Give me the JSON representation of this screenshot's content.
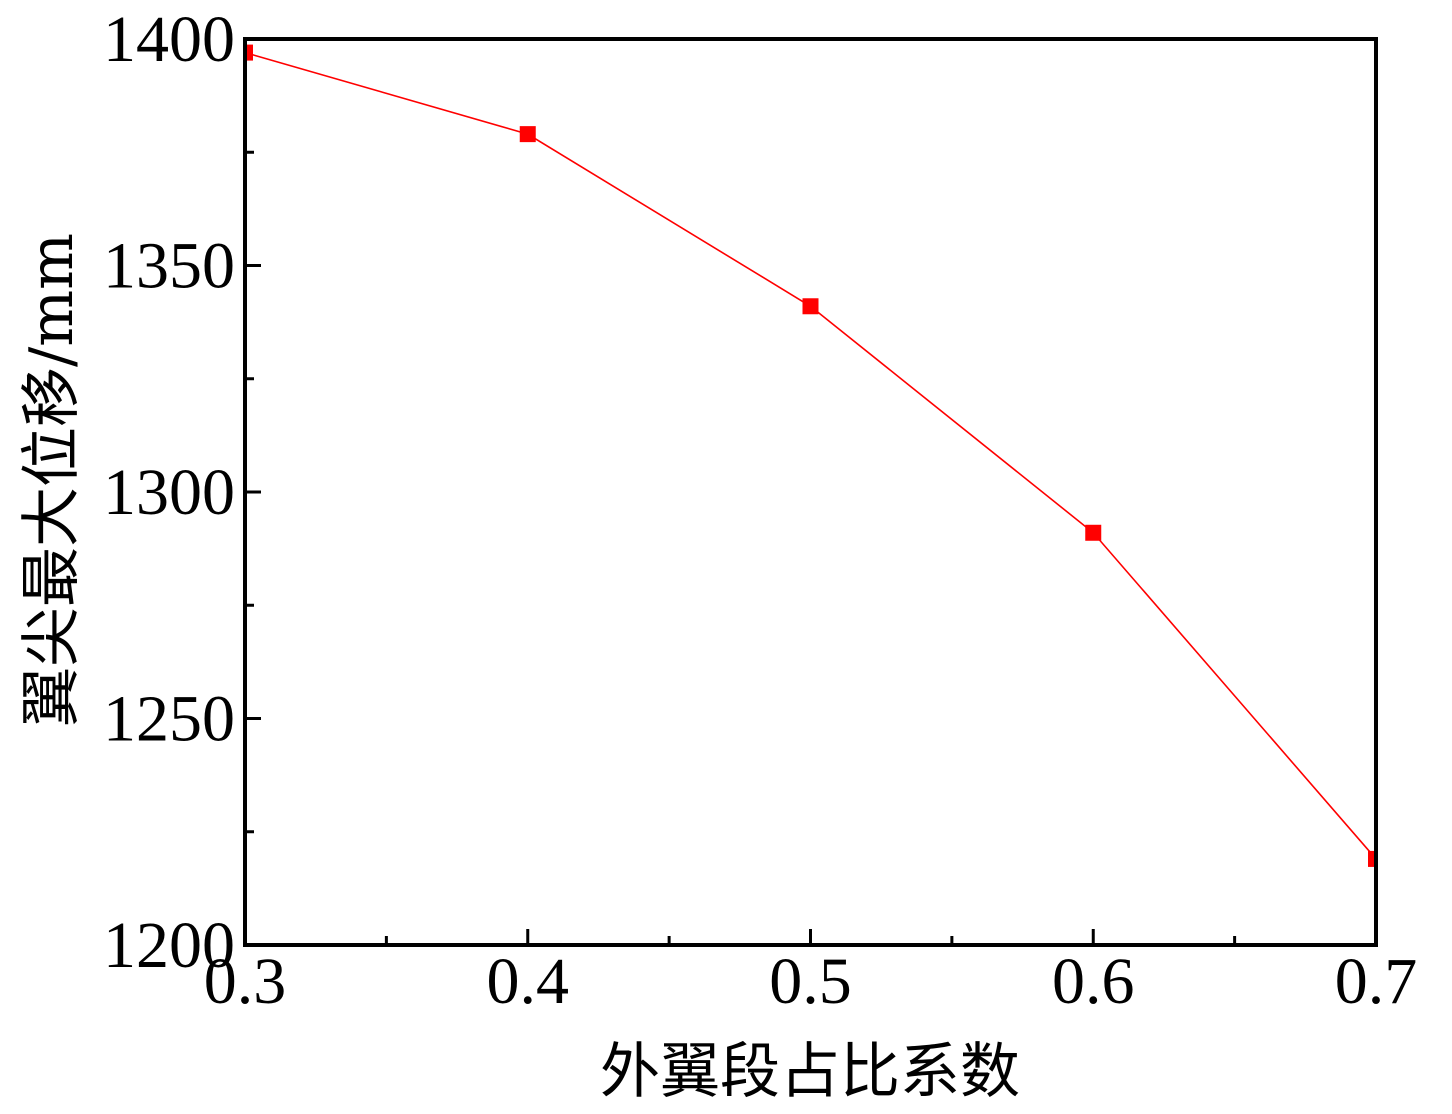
{
  "chart_data": {
    "type": "line",
    "title": "",
    "xlabel": "外翼段占比系数",
    "ylabel": "翼尖最大位移/mm",
    "x": [
      0.3,
      0.4,
      0.5,
      0.6,
      0.7
    ],
    "series": [
      {
        "values": [
          1397,
          1379,
          1341,
          1291,
          1219
        ],
        "color": "#ff0000",
        "marker": "square"
      }
    ],
    "xlim": [
      0.3,
      0.7
    ],
    "ylim": [
      1200,
      1400
    ],
    "xticks": [
      "0.3",
      "0.4",
      "0.5",
      "0.6",
      "0.7"
    ],
    "yticks": [
      "1200",
      "1250",
      "1300",
      "1350",
      "1400"
    ],
    "x_minor_ticks": [
      0.35,
      0.45,
      0.55,
      0.65
    ],
    "y_minor_ticks": [
      1225,
      1275,
      1325,
      1375
    ],
    "grid": false,
    "legend": "none"
  }
}
